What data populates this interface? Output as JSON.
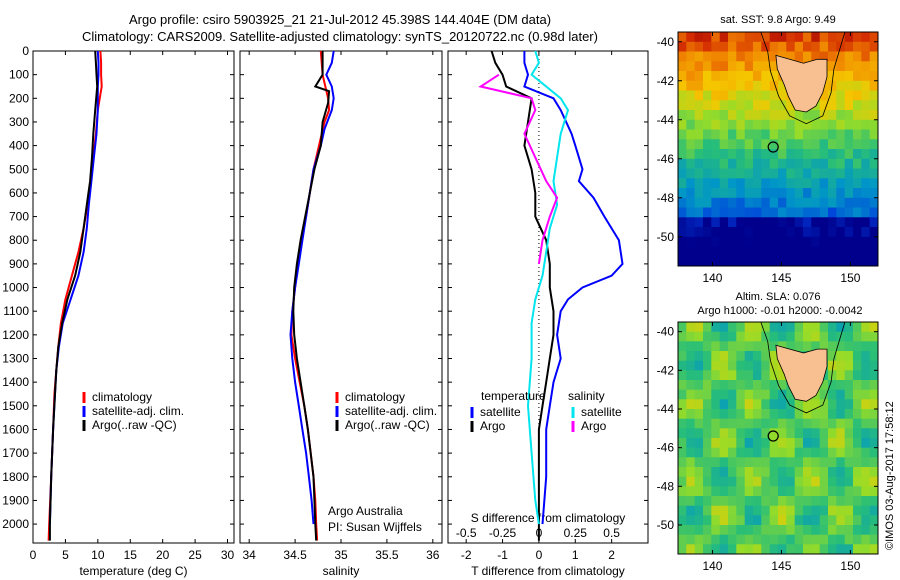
{
  "header": {
    "title_line1": "Argo profile: csiro 5903925_21 21-Jul-2012 45.398S 144.404E (DM data)",
    "title_line2": "Climatology: CARS2009. Satellite-adjusted climatology: synTS_20120722.nc (0.98d later)"
  },
  "colors": {
    "climatology": "#ff0000",
    "satellite": "#0000ff",
    "argo": "#000000",
    "sat_salinity": "#00e5ee",
    "argo_salinity": "#ff00ff"
  },
  "chart_data": [
    {
      "type": "line",
      "panel": "temperature",
      "xlabel": "temperature (deg C)",
      "xlim": [
        0,
        31
      ],
      "xticks": [
        0,
        5,
        10,
        15,
        20,
        25,
        30
      ],
      "ylim": [
        0,
        2080
      ],
      "yticks": [
        0,
        100,
        200,
        300,
        400,
        500,
        600,
        700,
        800,
        900,
        1000,
        1100,
        1200,
        1300,
        1400,
        1500,
        1600,
        1700,
        1800,
        1900,
        2000
      ],
      "legend": [
        "climatology",
        "satellite-adj. clim.",
        "Argo(..raw -QC)"
      ],
      "series": [
        {
          "name": "climatology",
          "points": [
            [
              10.4,
              0
            ],
            [
              10.5,
              50
            ],
            [
              10.5,
              100
            ],
            [
              10.6,
              150
            ],
            [
              10.0,
              250
            ],
            [
              9.7,
              350
            ],
            [
              9.3,
              450
            ],
            [
              8.9,
              550
            ],
            [
              8.4,
              650
            ],
            [
              7.8,
              750
            ],
            [
              7.0,
              850
            ],
            [
              6.0,
              950
            ],
            [
              5.0,
              1050
            ],
            [
              4.3,
              1150
            ],
            [
              3.9,
              1250
            ],
            [
              3.6,
              1350
            ],
            [
              3.3,
              1450
            ],
            [
              3.1,
              1600
            ],
            [
              2.8,
              1800
            ],
            [
              2.5,
              2000
            ],
            [
              2.4,
              2070
            ]
          ]
        },
        {
          "name": "satellite-adj. clim.",
          "points": [
            [
              10.0,
              0
            ],
            [
              10.1,
              50
            ],
            [
              10.1,
              100
            ],
            [
              10.0,
              150
            ],
            [
              10.0,
              250
            ],
            [
              9.8,
              350
            ],
            [
              9.4,
              450
            ],
            [
              9.0,
              550
            ],
            [
              8.6,
              650
            ],
            [
              8.3,
              750
            ],
            [
              7.8,
              850
            ],
            [
              7.0,
              950
            ],
            [
              5.8,
              1050
            ],
            [
              4.6,
              1150
            ],
            [
              4.0,
              1250
            ],
            [
              3.6,
              1350
            ],
            [
              3.4,
              1450
            ],
            [
              3.1,
              1600
            ],
            [
              2.8,
              1800
            ],
            [
              2.6,
              2000
            ]
          ]
        },
        {
          "name": "Argo(..raw -QC)",
          "points": [
            [
              9.6,
              0
            ],
            [
              9.7,
              50
            ],
            [
              9.8,
              100
            ],
            [
              9.9,
              150
            ],
            [
              9.6,
              250
            ],
            [
              9.3,
              350
            ],
            [
              9.1,
              450
            ],
            [
              8.8,
              550
            ],
            [
              8.3,
              650
            ],
            [
              7.8,
              750
            ],
            [
              7.3,
              850
            ],
            [
              6.5,
              950
            ],
            [
              5.3,
              1050
            ],
            [
              4.5,
              1150
            ],
            [
              3.9,
              1250
            ],
            [
              3.6,
              1350
            ],
            [
              3.4,
              1450
            ],
            [
              3.1,
              1600
            ],
            [
              2.8,
              1800
            ],
            [
              2.6,
              2000
            ],
            [
              2.6,
              2070
            ]
          ]
        }
      ]
    },
    {
      "type": "line",
      "panel": "salinity",
      "xlabel": "salinity",
      "xlim": [
        33.9,
        36.1
      ],
      "xticks": [
        34,
        34.5,
        35,
        35.5,
        36
      ],
      "ylim": [
        0,
        2080
      ],
      "legend": [
        "climatology",
        "satellite-adj. clim.",
        "Argo(..raw -QC)"
      ],
      "annotation": [
        "Argo Australia",
        "PI: Susan Wijffels"
      ],
      "series": [
        {
          "name": "climatology",
          "points": [
            [
              34.78,
              0
            ],
            [
              34.8,
              100
            ],
            [
              34.86,
              200
            ],
            [
              34.87,
              250
            ],
            [
              34.82,
              300
            ],
            [
              34.76,
              400
            ],
            [
              34.7,
              500
            ],
            [
              34.66,
              600
            ],
            [
              34.62,
              700
            ],
            [
              34.57,
              800
            ],
            [
              34.53,
              900
            ],
            [
              34.5,
              1000
            ],
            [
              34.47,
              1100
            ],
            [
              34.46,
              1200
            ],
            [
              34.5,
              1300
            ],
            [
              34.55,
              1400
            ],
            [
              34.6,
              1500
            ],
            [
              34.64,
              1600
            ],
            [
              34.67,
              1700
            ],
            [
              34.7,
              1800
            ],
            [
              34.72,
              1900
            ],
            [
              34.73,
              2000
            ],
            [
              34.74,
              2070
            ]
          ]
        },
        {
          "name": "satellite-adj. clim.",
          "points": [
            [
              34.92,
              0
            ],
            [
              34.9,
              50
            ],
            [
              34.84,
              100
            ],
            [
              34.9,
              150
            ],
            [
              34.92,
              200
            ],
            [
              34.9,
              250
            ],
            [
              34.82,
              330
            ],
            [
              34.78,
              400
            ],
            [
              34.7,
              500
            ],
            [
              34.66,
              600
            ],
            [
              34.62,
              700
            ],
            [
              34.58,
              800
            ],
            [
              34.54,
              900
            ],
            [
              34.5,
              1000
            ],
            [
              34.47,
              1100
            ],
            [
              34.45,
              1200
            ],
            [
              34.47,
              1300
            ],
            [
              34.5,
              1400
            ],
            [
              34.54,
              1500
            ],
            [
              34.58,
              1600
            ],
            [
              34.62,
              1700
            ],
            [
              34.65,
              1800
            ],
            [
              34.68,
              1900
            ],
            [
              34.7,
              2000
            ]
          ]
        },
        {
          "name": "Argo(..raw -QC)",
          "points": [
            [
              34.8,
              0
            ],
            [
              34.8,
              100
            ],
            [
              34.72,
              150
            ],
            [
              34.87,
              170
            ],
            [
              34.86,
              220
            ],
            [
              34.8,
              300
            ],
            [
              34.78,
              400
            ],
            [
              34.71,
              500
            ],
            [
              34.66,
              600
            ],
            [
              34.61,
              700
            ],
            [
              34.56,
              800
            ],
            [
              34.52,
              900
            ],
            [
              34.49,
              1000
            ],
            [
              34.48,
              1100
            ],
            [
              34.49,
              1200
            ],
            [
              34.52,
              1300
            ],
            [
              34.56,
              1400
            ],
            [
              34.6,
              1500
            ],
            [
              34.64,
              1600
            ],
            [
              34.67,
              1700
            ],
            [
              34.7,
              1800
            ],
            [
              34.71,
              1900
            ],
            [
              34.72,
              2000
            ],
            [
              34.73,
              2070
            ]
          ]
        }
      ]
    },
    {
      "type": "line",
      "panel": "difference",
      "xlabel": "T difference from climatology",
      "xlabel2": "S difference from climatology",
      "xlim": [
        -2.5,
        3.0
      ],
      "xticks": [
        -2,
        -1,
        0,
        1,
        2
      ],
      "xticks2_labels": [
        "-0.5",
        "-0.25",
        "0",
        "0.25",
        "0.5"
      ],
      "xticks2_pos": [
        -2,
        -1,
        0,
        1,
        2
      ],
      "ylim": [
        0,
        2080
      ],
      "legend_headers": [
        "temperature",
        "salinity"
      ],
      "legend": [
        "satellite",
        "Argo",
        "satellite",
        "Argo"
      ],
      "series": [
        {
          "name": "temperature satellite",
          "quantity": "temperature",
          "points": [
            [
              -0.4,
              0
            ],
            [
              -0.4,
              50
            ],
            [
              -0.3,
              100
            ],
            [
              -0.4,
              150
            ],
            [
              0.4,
              200
            ],
            [
              0.6,
              250
            ],
            [
              0.9,
              350
            ],
            [
              1.0,
              400
            ],
            [
              1.2,
              500
            ],
            [
              1.1,
              550
            ],
            [
              1.5,
              620
            ],
            [
              1.8,
              700
            ],
            [
              2.2,
              800
            ],
            [
              2.3,
              900
            ],
            [
              2.0,
              950
            ],
            [
              1.2,
              1000
            ],
            [
              0.8,
              1050
            ],
            [
              0.6,
              1100
            ],
            [
              0.5,
              1200
            ],
            [
              0.6,
              1300
            ],
            [
              0.4,
              1400
            ],
            [
              0.3,
              1500
            ],
            [
              0.2,
              1600
            ],
            [
              0.2,
              1800
            ],
            [
              0.1,
              2000
            ]
          ]
        },
        {
          "name": "temperature Argo",
          "quantity": "temperature",
          "points": [
            [
              -1.3,
              0
            ],
            [
              -1.2,
              50
            ],
            [
              -1.0,
              100
            ],
            [
              -0.9,
              150
            ],
            [
              -0.2,
              200
            ],
            [
              -0.3,
              300
            ],
            [
              -0.4,
              400
            ],
            [
              -0.2,
              500
            ],
            [
              -0.1,
              600
            ],
            [
              -0.1,
              700
            ],
            [
              0.2,
              800
            ],
            [
              0.3,
              900
            ],
            [
              0.3,
              1000
            ],
            [
              0.4,
              1100
            ],
            [
              0.4,
              1200
            ],
            [
              0.3,
              1300
            ],
            [
              0.2,
              1400
            ],
            [
              0.1,
              1500
            ],
            [
              0.0,
              1600
            ],
            [
              0.0,
              1800
            ],
            [
              0.0,
              2000
            ],
            [
              0.0,
              2070
            ]
          ]
        },
        {
          "name": "salinity satellite",
          "quantity": "salinity",
          "points": [
            [
              -0.1,
              0
            ],
            [
              0.0,
              50
            ],
            [
              -0.2,
              100
            ],
            [
              0.2,
              150
            ],
            [
              0.6,
              200
            ],
            [
              0.8,
              250
            ],
            [
              0.6,
              350
            ],
            [
              0.5,
              450
            ],
            [
              0.4,
              550
            ],
            [
              0.5,
              650
            ],
            [
              0.3,
              750
            ],
            [
              0.2,
              850
            ],
            [
              0.1,
              950
            ],
            [
              -0.1,
              1050
            ],
            [
              -0.2,
              1150
            ],
            [
              -0.2,
              1300
            ],
            [
              -0.3,
              1500
            ],
            [
              -0.2,
              1700
            ],
            [
              -0.1,
              1900
            ],
            [
              0.0,
              2000
            ]
          ]
        },
        {
          "name": "salinity Argo",
          "quantity": "salinity",
          "points": [
            [
              -1.1,
              100
            ],
            [
              -1.6,
              150
            ],
            [
              -0.2,
              200
            ],
            [
              -0.1,
              250
            ],
            [
              -0.4,
              350
            ],
            [
              -0.1,
              450
            ],
            [
              0.2,
              550
            ],
            [
              0.5,
              620
            ],
            [
              0.3,
              700
            ],
            [
              0.1,
              800
            ],
            [
              0.0,
              900
            ]
          ]
        }
      ]
    }
  ],
  "maps": [
    {
      "panel": "sst-map",
      "title": "sat. SST: 9.8 Argo: 9.49",
      "xticks": [
        "140",
        "145",
        "150"
      ],
      "yticks": [
        "-40",
        "-42",
        "-44",
        "-46",
        "-48",
        "-50"
      ],
      "xlim": [
        137.5,
        152
      ],
      "ylim": [
        -51.5,
        -39.5
      ]
    },
    {
      "panel": "sla-map",
      "title_line1": "Altim. SLA: 0.076",
      "title_line2": "Argo h1000: -0.01 h2000: -0.0042",
      "xticks": [
        "140",
        "145",
        "150"
      ],
      "yticks": [
        "-40",
        "-42",
        "-44",
        "-46",
        "-48",
        "-50"
      ],
      "xlim": [
        137.5,
        152
      ],
      "ylim": [
        -51.5,
        -39.5
      ]
    }
  ],
  "argo_position": {
    "lon": 144.404,
    "lat": -45.398
  },
  "stamp": "©IMOS 03-Aug-2017 17:58:12"
}
